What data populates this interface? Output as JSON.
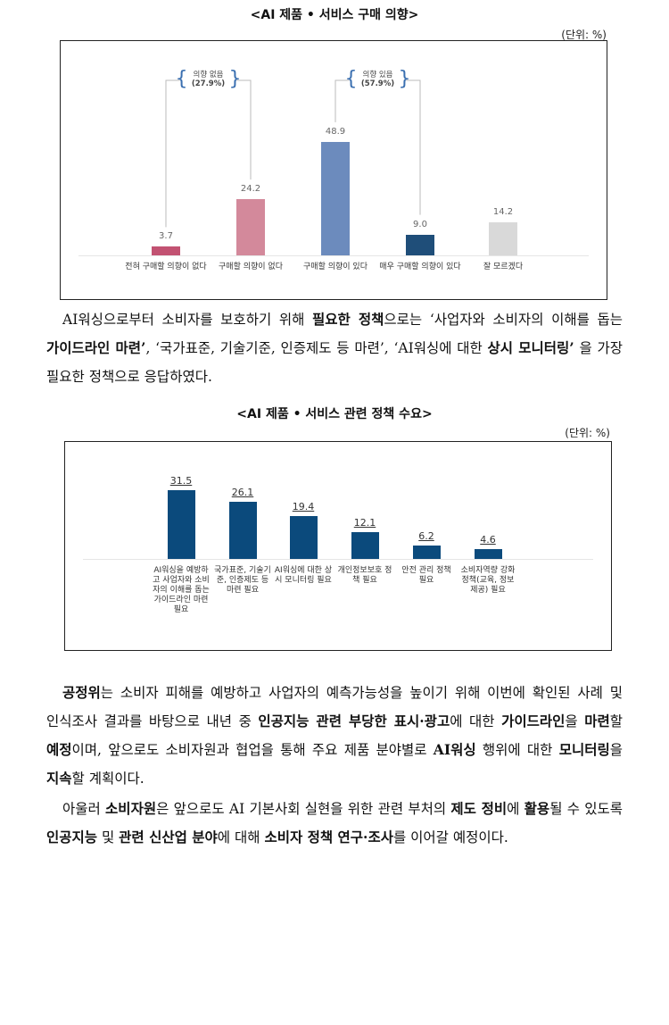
{
  "chart_data": [
    {
      "type": "bar",
      "title": "<AI 제품 • 서비스 구매 의향>",
      "unit_label": "(단위: %)",
      "categories": [
        "전혀 구매할 의향이 없다",
        "구매할 의향이 없다",
        "구매할 의향이 있다",
        "매우 구매할 의향이 있다",
        "잘 모르겠다"
      ],
      "values": [
        3.7,
        24.2,
        48.9,
        9.0,
        14.2
      ],
      "value_labels": [
        "3.7",
        "24.2",
        "48.9",
        "9.0",
        "14.2"
      ],
      "colors": [
        "#c25272",
        "#d3899b",
        "#6c8bbd",
        "#1f4e79",
        "#d9d9d9"
      ],
      "annotations": [
        {
          "text": "의향 없음",
          "note": "(27.9%)"
        },
        {
          "text": "의향 있음",
          "note": "(57.9%)"
        }
      ]
    },
    {
      "type": "bar",
      "title": "<AI 제품 • 서비스 관련 정책 수요>",
      "unit_label": "(단위: %)",
      "categories": [
        "AI워싱을 예방하고 사업자와 소비자의 이해를 돕는 가이드라인 마련 필요",
        "국가표준, 기술기준, 인증제도 등 마련 필요",
        "AI워싱에 대한 상시 모니터링 필요",
        "개인정보보호 정책 필요",
        "안전 관리 정책 필요",
        "소비자역량 강화 정책(교육, 정보 제공) 필요"
      ],
      "values": [
        31.5,
        26.1,
        19.4,
        12.1,
        6.2,
        4.6
      ],
      "color": "#0b4a7c"
    }
  ],
  "paragraphs": [
    {
      "runs": [
        {
          "text": "AI워싱으로부터 소비자를 보호하기 위해 ",
          "bold": false
        },
        {
          "text": "필요한 정책",
          "bold": true
        },
        {
          "text": "으로는 ‘사업자와 소비자의 이해를 돕는 ",
          "bold": false
        },
        {
          "text": "가이드라인 마련’",
          "bold": true
        },
        {
          "text": ", ‘국가표준, 기술기준, 인증제도 등 마련’, ‘AI워싱에 대한 ",
          "bold": false
        },
        {
          "text": "상시 모니터링’",
          "bold": true
        },
        {
          "text": " 을 가장 필요한 정책으로 응답하였다.",
          "bold": false
        }
      ]
    },
    {
      "runs": [
        {
          "text": "공정위",
          "bold": true
        },
        {
          "text": "는 소비자 피해를 예방하고 사업자의 예측가능성을 높이기 위해 이번에 확인된 사례 및 인식조사 결과를 바탕으로 내년 중 ",
          "bold": false
        },
        {
          "text": "인공지능 관련 부당한 표시·광고",
          "bold": true
        },
        {
          "text": "에 대한 ",
          "bold": false
        },
        {
          "text": "가이드라인",
          "bold": true
        },
        {
          "text": "을 ",
          "bold": false
        },
        {
          "text": "마련",
          "bold": true
        },
        {
          "text": "할 ",
          "bold": false
        },
        {
          "text": "예정",
          "bold": true
        },
        {
          "text": "이며, 앞으로도 소비자원과 협업을 통해 주요 제품 분야별로 ",
          "bold": false
        },
        {
          "text": "AI워싱",
          "bold": true
        },
        {
          "text": " 행위에 대한 ",
          "bold": false
        },
        {
          "text": "모니터링",
          "bold": true
        },
        {
          "text": "을 ",
          "bold": false
        },
        {
          "text": "지속",
          "bold": true
        },
        {
          "text": "할 계획이다.",
          "bold": false
        }
      ]
    },
    {
      "runs": [
        {
          "text": "아울러 ",
          "bold": false
        },
        {
          "text": "소비자원",
          "bold": true
        },
        {
          "text": "은 앞으로도 AI 기본사회 실현을 위한 관련 부처의 ",
          "bold": false
        },
        {
          "text": "제도 정비",
          "bold": true
        },
        {
          "text": "에 ",
          "bold": false
        },
        {
          "text": "활용",
          "bold": true
        },
        {
          "text": "될 수 있도록 ",
          "bold": false
        },
        {
          "text": "인공지능",
          "bold": true
        },
        {
          "text": " 및 ",
          "bold": false
        },
        {
          "text": "관련 신산업 분야",
          "bold": true
        },
        {
          "text": "에 대해 ",
          "bold": false
        },
        {
          "text": "소비자 정책 연구·조사",
          "bold": true
        },
        {
          "text": "를 이어갈 예정이다.",
          "bold": false
        }
      ]
    }
  ]
}
